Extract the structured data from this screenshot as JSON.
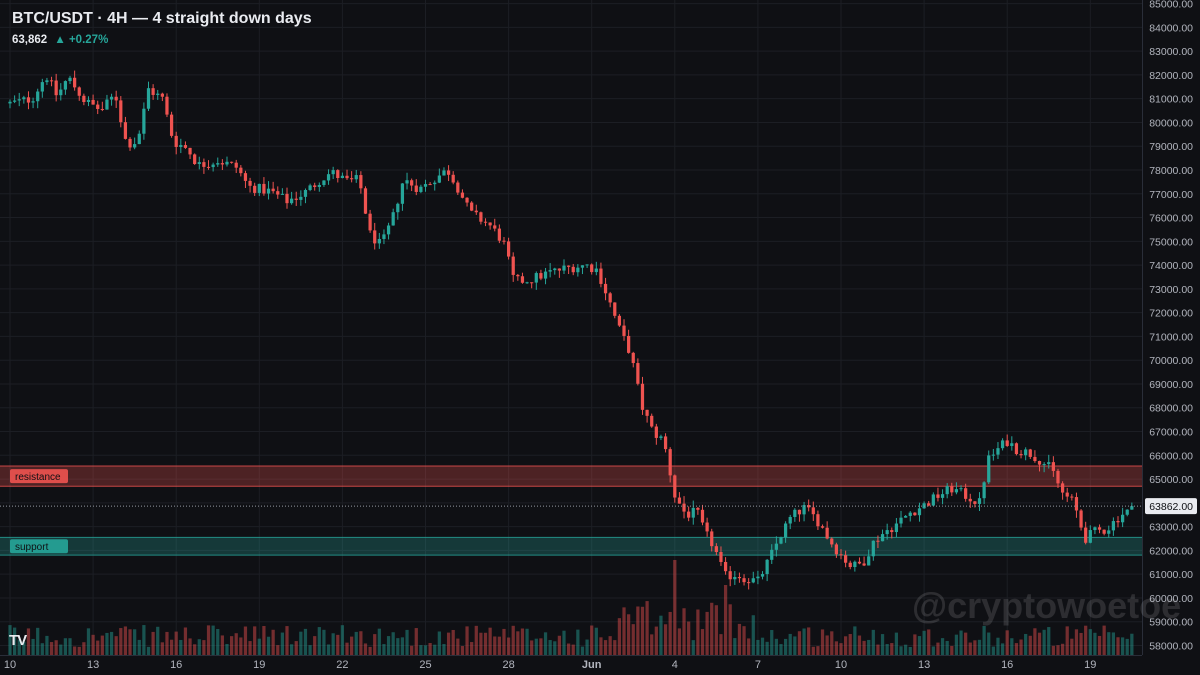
{
  "header": {
    "title": "BTC/USDT · 4H — 4 straight down days",
    "price": "63,862",
    "change": "▲ +0.27%"
  },
  "watermark": "@cryptowoetoe",
  "logo": "TV",
  "colors": {
    "up": "#26a69a",
    "down": "#ef5350",
    "background": "#0f1014",
    "grid": "#1c1e24",
    "axis_text": "#b2b5be"
  },
  "chart_data": {
    "type": "candlestick",
    "title": "BTC/USDT · 4H — 4 straight down days",
    "y_ticks": [
      58000,
      59000,
      60000,
      61000,
      62000,
      63000,
      64000,
      65000,
      66000,
      67000,
      68000,
      69000,
      70000,
      71000,
      72000,
      73000,
      74000,
      75000,
      76000,
      77000,
      78000,
      79000,
      80000,
      81000,
      82000,
      83000,
      84000,
      85000
    ],
    "y_tick_labels": [
      "58000.00",
      "59000.00",
      "60000.00",
      "61000.00",
      "62000.00",
      "63000.00",
      "64000.00",
      "65000.00",
      "66000.00",
      "67000.00",
      "68000.00",
      "69000.00",
      "70000.00",
      "71000.00",
      "72000.00",
      "73000.00",
      "74000.00",
      "75000.00",
      "76000.00",
      "77000.00",
      "78000.00",
      "79000.00",
      "80000.00",
      "81000.00",
      "82000.00",
      "83000.00",
      "84000.00",
      "85000.00"
    ],
    "ylim": [
      57600,
      85150
    ],
    "x_ticks": [
      {
        "label": "10",
        "day": 0
      },
      {
        "label": "13",
        "day": 3
      },
      {
        "label": "16",
        "day": 6
      },
      {
        "label": "19",
        "day": 9
      },
      {
        "label": "22",
        "day": 12
      },
      {
        "label": "25",
        "day": 15
      },
      {
        "label": "28",
        "day": 18
      },
      {
        "label": "Jun",
        "day": 21
      },
      {
        "label": "4",
        "day": 24
      },
      {
        "label": "7",
        "day": 27
      },
      {
        "label": "10",
        "day": 30
      },
      {
        "label": "13",
        "day": 33
      },
      {
        "label": "16",
        "day": 36
      },
      {
        "label": "19",
        "day": 39
      }
    ],
    "xlim_days": [
      0,
      41.5
    ],
    "candles_per_day": 6,
    "last_price": 63862,
    "last_price_label": "63862.00",
    "zones": [
      {
        "name": "resistance",
        "low": 64700,
        "high": 65550,
        "color": "#ef5350"
      },
      {
        "name": "support",
        "low": 61800,
        "high": 62550,
        "color": "#26a69a"
      }
    ],
    "close_path": [
      [
        0,
        80800
      ],
      [
        0.8,
        81000
      ],
      [
        1.3,
        82000
      ],
      [
        1.7,
        81100
      ],
      [
        2.1,
        81900
      ],
      [
        2.7,
        80900
      ],
      [
        3.3,
        80500
      ],
      [
        3.8,
        81200
      ],
      [
        4.2,
        79100
      ],
      [
        4.6,
        79200
      ],
      [
        5.0,
        81400
      ],
      [
        5.5,
        81000
      ],
      [
        5.9,
        79200
      ],
      [
        6.4,
        78900
      ],
      [
        6.8,
        78200
      ],
      [
        7.5,
        78400
      ],
      [
        8.2,
        78100
      ],
      [
        8.6,
        77300
      ],
      [
        9.4,
        77100
      ],
      [
        10.0,
        76700
      ],
      [
        10.6,
        77000
      ],
      [
        11.2,
        77600
      ],
      [
        11.6,
        77900
      ],
      [
        12.2,
        77500
      ],
      [
        12.6,
        77600
      ],
      [
        13.0,
        75300
      ],
      [
        13.4,
        74800
      ],
      [
        13.8,
        75900
      ],
      [
        14.2,
        77600
      ],
      [
        14.8,
        77200
      ],
      [
        15.4,
        77700
      ],
      [
        15.8,
        78000
      ],
      [
        16.2,
        77200
      ],
      [
        16.6,
        76200
      ],
      [
        17.3,
        75700
      ],
      [
        17.8,
        75000
      ],
      [
        18.2,
        73300
      ],
      [
        18.8,
        73400
      ],
      [
        19.5,
        73700
      ],
      [
        20.2,
        73900
      ],
      [
        20.8,
        74000
      ],
      [
        21.2,
        73800
      ],
      [
        21.6,
        72600
      ],
      [
        22.0,
        71300
      ],
      [
        22.4,
        70300
      ],
      [
        22.8,
        68100
      ],
      [
        23.2,
        67000
      ],
      [
        23.6,
        66600
      ],
      [
        24.0,
        64300
      ],
      [
        24.4,
        63500
      ],
      [
        24.8,
        63600
      ],
      [
        25.1,
        62700
      ],
      [
        25.4,
        62200
      ],
      [
        25.8,
        60900
      ],
      [
        26.2,
        61000
      ],
      [
        26.6,
        60800
      ],
      [
        27.0,
        60700
      ],
      [
        27.4,
        61600
      ],
      [
        27.8,
        62600
      ],
      [
        28.2,
        63400
      ],
      [
        28.7,
        63800
      ],
      [
        29.2,
        63200
      ],
      [
        29.6,
        62400
      ],
      [
        30.0,
        61800
      ],
      [
        30.4,
        61300
      ],
      [
        30.8,
        61500
      ],
      [
        31.2,
        62400
      ],
      [
        31.6,
        62800
      ],
      [
        32.0,
        63100
      ],
      [
        32.5,
        63600
      ],
      [
        33.0,
        63900
      ],
      [
        33.5,
        64300
      ],
      [
        34.0,
        64600
      ],
      [
        34.5,
        64300
      ],
      [
        35.0,
        64000
      ],
      [
        35.3,
        65800
      ],
      [
        35.7,
        66300
      ],
      [
        36.0,
        66600
      ],
      [
        36.4,
        66200
      ],
      [
        36.8,
        66100
      ],
      [
        37.2,
        65800
      ],
      [
        37.6,
        65400
      ],
      [
        38.0,
        64400
      ],
      [
        38.4,
        64000
      ],
      [
        38.8,
        62500
      ],
      [
        39.2,
        62800
      ],
      [
        39.6,
        62900
      ],
      [
        40.1,
        63500
      ],
      [
        40.6,
        63800
      ]
    ]
  }
}
